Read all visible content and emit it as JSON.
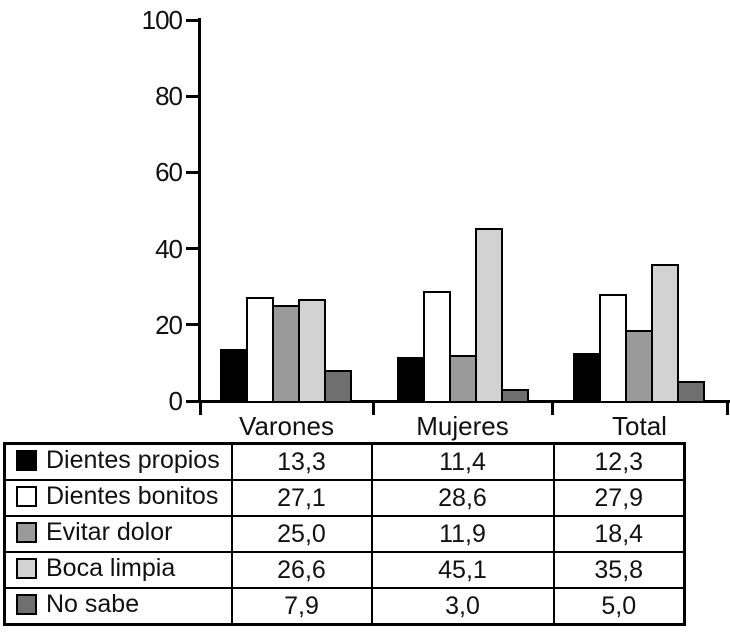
{
  "chart_data": {
    "type": "bar",
    "title": "",
    "xlabel": "",
    "ylabel": "",
    "categories": [
      "Varones",
      "Mujeres",
      "Total"
    ],
    "series": [
      {
        "name": "Dientes propios",
        "color": "#000000",
        "values": [
          13.3,
          11.4,
          12.3
        ]
      },
      {
        "name": "Dientes bonitos",
        "color": "#ffffff",
        "values": [
          27.1,
          28.6,
          27.9
        ]
      },
      {
        "name": "Evitar dolor",
        "color": "#9a9a9a",
        "values": [
          25.0,
          11.9,
          18.4
        ]
      },
      {
        "name": "Boca limpia",
        "color": "#d2d2d2",
        "values": [
          26.6,
          45.1,
          35.8
        ]
      },
      {
        "name": "No sabe",
        "color": "#6f6f6f",
        "values": [
          7.9,
          3.0,
          5.0
        ]
      }
    ],
    "ylim": [
      0,
      100
    ],
    "yticks": [
      0,
      20,
      40,
      60,
      80,
      100
    ],
    "grid": false,
    "legend_position": "table-below-left-column",
    "bar_outline_color": "#000000"
  },
  "table": {
    "columns": [
      "",
      "Varones",
      "Mujeres",
      "Total"
    ],
    "rows": [
      {
        "label": "Dientes propios",
        "swatch_color": "#000000",
        "values": [
          "13,3",
          "11,4",
          "12,3"
        ]
      },
      {
        "label": "Dientes bonitos",
        "swatch_color": "#ffffff",
        "values": [
          "27,1",
          "28,6",
          "27,9"
        ]
      },
      {
        "label": "Evitar dolor",
        "swatch_color": "#9a9a9a",
        "values": [
          "25,0",
          "11,9",
          "18,4"
        ]
      },
      {
        "label": "Boca limpia",
        "swatch_color": "#d2d2d2",
        "values": [
          "26,6",
          "45,1",
          "35,8"
        ]
      },
      {
        "label": "No sabe",
        "swatch_color": "#6f6f6f",
        "values": [
          "7,9",
          "3,0",
          "5,0"
        ]
      }
    ]
  }
}
